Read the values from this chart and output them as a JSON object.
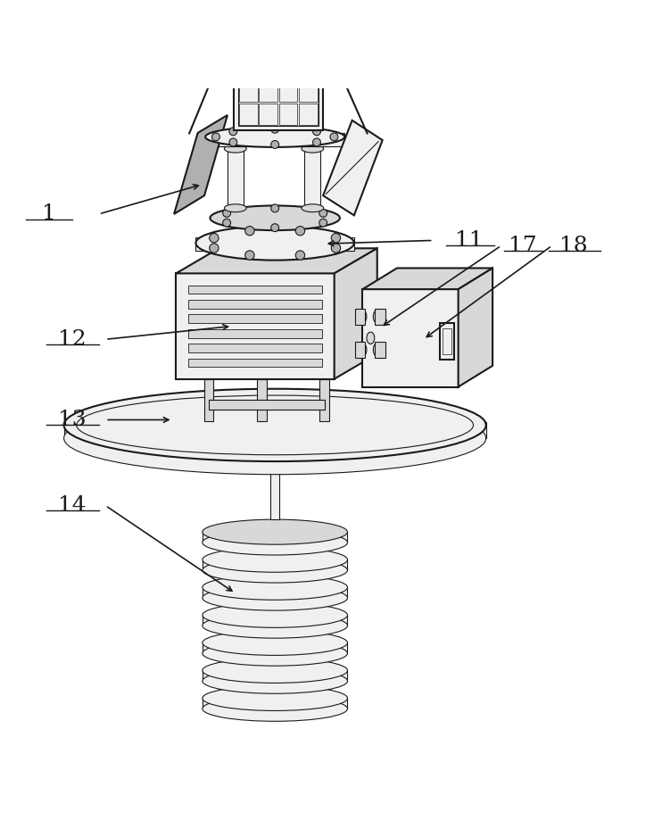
{
  "bg_color": "#ffffff",
  "line_color": "#1a1a1a",
  "fill_light": "#f0f0f0",
  "fill_mid": "#d8d8d8",
  "fill_dark": "#b0b0b0",
  "fill_solar": "#888888",
  "label_fontsize": 18,
  "figsize": [
    7.42,
    9.38
  ],
  "dpi": 100
}
